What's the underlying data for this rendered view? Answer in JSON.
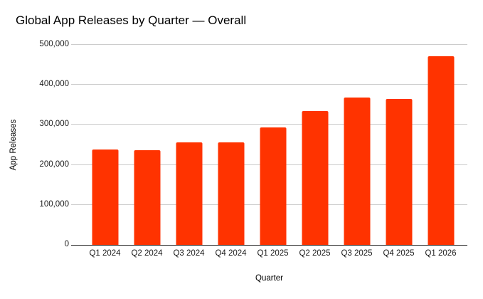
{
  "chart_data": {
    "type": "bar",
    "title": "Global App Releases by Quarter — Overall",
    "xlabel": "Quarter",
    "ylabel": "App Releases",
    "categories": [
      "Q1 2024",
      "Q2 2024",
      "Q3 2024",
      "Q4 2024",
      "Q1 2025",
      "Q2 2025",
      "Q3 2025",
      "Q4 2025",
      "Q1 2026"
    ],
    "values": [
      238000,
      236000,
      256000,
      257000,
      294000,
      335000,
      368000,
      364000,
      472000
    ],
    "ylim": [
      0,
      500000
    ],
    "yticks": [
      0,
      100000,
      200000,
      300000,
      400000,
      500000
    ],
    "ytick_labels": [
      "0",
      "100,000",
      "200,000",
      "300,000",
      "400,000",
      "500,000"
    ],
    "grid": true,
    "legend_position": "none",
    "colors": {
      "bar": "#ff3300",
      "gridline": "#cccccc",
      "axis_line": "#333333",
      "text": "#000000"
    }
  }
}
